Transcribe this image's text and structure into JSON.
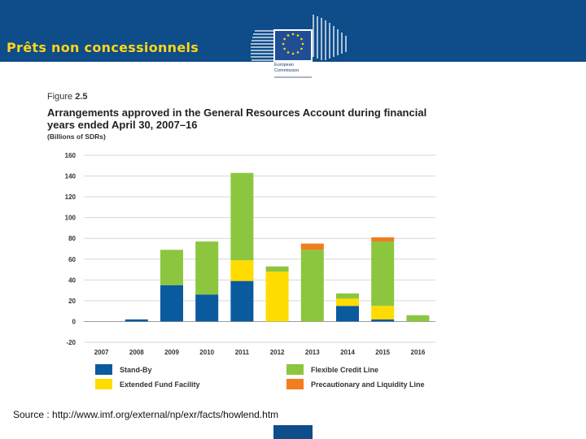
{
  "slide": {
    "title": "Prêts non concessionnels",
    "source": "Source : http://www.imf.org/external/np/exr/facts/howlend.htm"
  },
  "logo": {
    "line1": "European",
    "line2": "Commission"
  },
  "figure": {
    "label_prefix": "Figure",
    "label_number": "2.5"
  },
  "colors": {
    "header": "#0e4c8a",
    "title_text": "#ffd617",
    "stand_by": "#0a5a9e",
    "extended_fund": "#ffdc00",
    "flexible_credit": "#8cc63f",
    "precautionary": "#f07d1e"
  },
  "chart_data": {
    "type": "bar",
    "stacked": true,
    "title": "Arrangements approved in the General Resources Account during financial years ended April 30, 2007–16",
    "ylabel": "(Billions of SDRs)",
    "xlabel": "",
    "ylim": [
      -20,
      160
    ],
    "yticks": [
      160,
      140,
      120,
      100,
      80,
      60,
      40,
      20,
      0,
      -20
    ],
    "grid": true,
    "legend_position": "bottom",
    "categories": [
      "2007",
      "2008",
      "2009",
      "2010",
      "2011",
      "2012",
      "2013",
      "2014",
      "2015",
      "2016"
    ],
    "series": [
      {
        "name": "Stand-By",
        "color": "#0a5a9e",
        "values": [
          0,
          2,
          35,
          26,
          39,
          0,
          0,
          15,
          2,
          0
        ]
      },
      {
        "name": "Extended Fund Facility",
        "color": "#ffdc00",
        "values": [
          0,
          0,
          0,
          0,
          20,
          48,
          0,
          7,
          13,
          0
        ]
      },
      {
        "name": "Flexible Credit Line",
        "color": "#8cc63f",
        "values": [
          0,
          0,
          34,
          51,
          84,
          5,
          69,
          5,
          62,
          6
        ]
      },
      {
        "name": "Precautionary and Liquidity Line",
        "color": "#f07d1e",
        "values": [
          0,
          0,
          0,
          0,
          0,
          0,
          6,
          0,
          4,
          0
        ]
      }
    ]
  }
}
